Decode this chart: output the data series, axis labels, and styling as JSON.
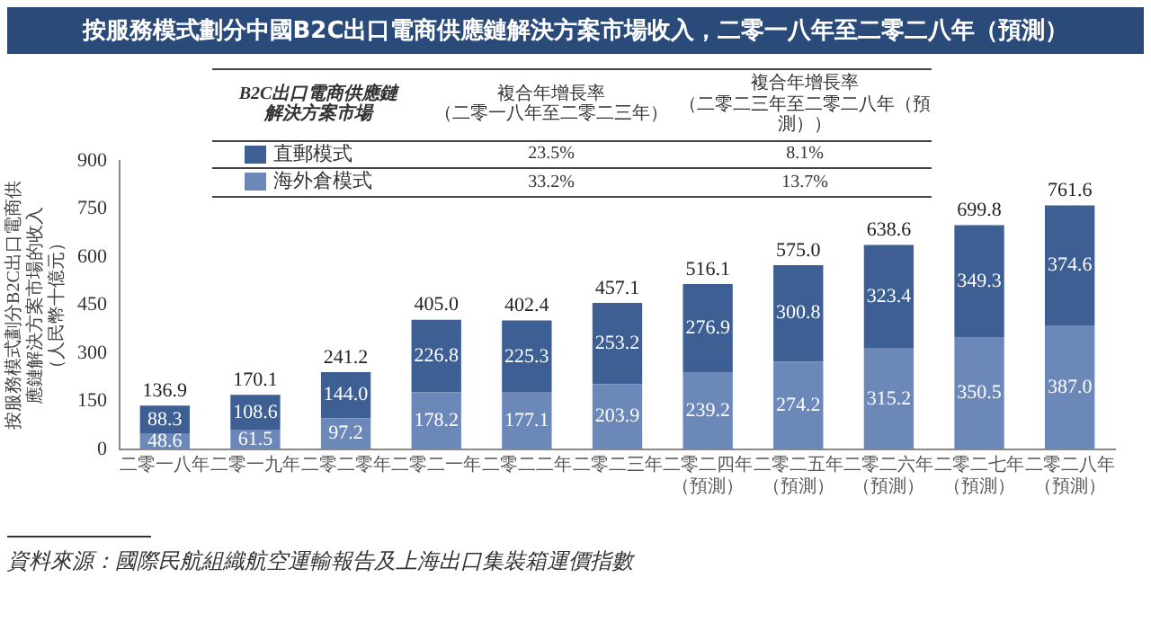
{
  "chart_data": {
    "type": "bar",
    "title": "按服務模式劃分中國B2C出口電商供應鏈解決方案市場收入，二零一八年至二零二八年（預測）",
    "ylabel": "按服務模式劃分B2C出口電商供應鏈解決方案市場的收入（人民幣十億元）",
    "categories": [
      "二零一八年",
      "二零一九年",
      "二零二零年",
      "二零二一年",
      "二零二二年",
      "二零二三年",
      "二零二四年（預測）",
      "二零二五年（預測）",
      "二零二六年（預測）",
      "二零二七年（預測）",
      "二零二八年（預測）"
    ],
    "series": [
      {
        "name": "海外倉模式",
        "color": "#6b88b8",
        "values": [
          48.6,
          61.5,
          97.2,
          178.2,
          177.1,
          203.9,
          239.2,
          274.2,
          315.2,
          350.5,
          387.0
        ],
        "value_labels": [
          "48.6",
          "61.5",
          "97.2",
          "178.2",
          "177.1",
          "203.9",
          "239.2",
          "274.2",
          "315.2",
          "350.5",
          "387.0"
        ]
      },
      {
        "name": "直郵模式",
        "color": "#3d5f94",
        "values": [
          88.3,
          108.6,
          144.0,
          226.8,
          225.3,
          253.2,
          276.9,
          300.8,
          323.4,
          349.3,
          374.6
        ],
        "value_labels": [
          "88.3",
          "108.6",
          "144.0",
          "226.8",
          "225.3",
          "253.2",
          "276.9",
          "300.8",
          "323.4",
          "349.3",
          "374.6"
        ]
      }
    ],
    "stacked": true,
    "totals": [
      "136.9",
      "170.1",
      "241.2",
      "405.0",
      "402.4",
      "457.1",
      "516.1",
      "575.0",
      "638.6",
      "699.8",
      "761.6"
    ],
    "ylim": [
      0,
      900
    ],
    "yticks": [
      0,
      150,
      300,
      450,
      600,
      750,
      900
    ],
    "grid": false,
    "legend": "top",
    "legend_title": "B2C出口電商供應鏈解決方案市場",
    "annotations": [
      "複合年增長率（二零一八年至二零二三年）",
      "複合年增長率（二零二三年至二零二八年（預測））",
      "23.5%",
      "8.1%",
      "33.2%",
      "13.7%",
      "資料來源：國際民航組織航空運輸報告及上海出口集裝箱運價指數"
    ]
  }
}
